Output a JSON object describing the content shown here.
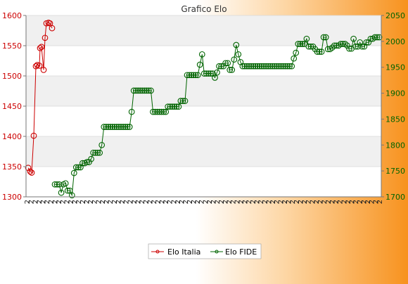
{
  "chart_data": {
    "type": "line",
    "title": "Grafico Elo",
    "left_axis": {
      "min": 1300,
      "max": 1600,
      "ticks": [
        1300,
        1350,
        1400,
        1450,
        1500,
        1550,
        1600
      ],
      "color": "#cc0000"
    },
    "right_axis": {
      "min": 1700,
      "max": 2050,
      "ticks": [
        1700,
        1750,
        1800,
        1850,
        1900,
        1950,
        2000,
        2050
      ],
      "color": "#006400"
    },
    "grid": true,
    "legend_placement": "bottom",
    "x_tick_labels_note": "dense overlapping vertical date labels (illegible)",
    "x_tick_prefix": "2",
    "series": [
      {
        "name": "Elo Italia",
        "axis": "left",
        "color": "#cc0000",
        "values": [
          1348,
          1342,
          1340,
          1401,
          1516,
          1518,
          1517,
          1546,
          1548,
          1510,
          1563,
          1587,
          1588,
          1587,
          1579
        ]
      },
      {
        "name": "Elo FIDE",
        "axis": "right",
        "color": "#006400",
        "values": [
          1724,
          1724,
          1724,
          1708,
          1724,
          1726,
          1712,
          1712,
          1703,
          1746,
          1757,
          1757,
          1757,
          1765,
          1765,
          1767,
          1767,
          1773,
          1785,
          1785,
          1785,
          1785,
          1800,
          1835,
          1835,
          1835,
          1835,
          1835,
          1835,
          1835,
          1835,
          1835,
          1835,
          1835,
          1835,
          1835,
          1864,
          1905,
          1905,
          1905,
          1905,
          1905,
          1905,
          1905,
          1905,
          1905,
          1864,
          1864,
          1864,
          1864,
          1864,
          1864,
          1864,
          1874,
          1874,
          1874,
          1874,
          1874,
          1874,
          1885,
          1885,
          1885,
          1935,
          1935,
          1935,
          1935,
          1935,
          1935,
          1955,
          1975,
          1938,
          1938,
          1938,
          1938,
          1938,
          1930,
          1940,
          1952,
          1952,
          1952,
          1958,
          1958,
          1945,
          1945,
          1965,
          1993,
          1975,
          1960,
          1952,
          1952,
          1952,
          1952,
          1952,
          1952,
          1952,
          1952,
          1952,
          1952,
          1952,
          1952,
          1952,
          1952,
          1952,
          1952,
          1952,
          1952,
          1952,
          1952,
          1952,
          1952,
          1952,
          1952,
          1967,
          1978,
          1995,
          1995,
          1995,
          1995,
          2005,
          1990,
          1990,
          1990,
          1985,
          1980,
          1980,
          1980,
          2008,
          2008,
          1985,
          1985,
          1988,
          1992,
          1992,
          1992,
          1995,
          1995,
          1995,
          1992,
          1986,
          1986,
          2005,
          1990,
          1990,
          1998,
          1990,
          1990,
          1998,
          1998,
          2005,
          2005,
          2008,
          2008,
          2008
        ]
      }
    ]
  }
}
